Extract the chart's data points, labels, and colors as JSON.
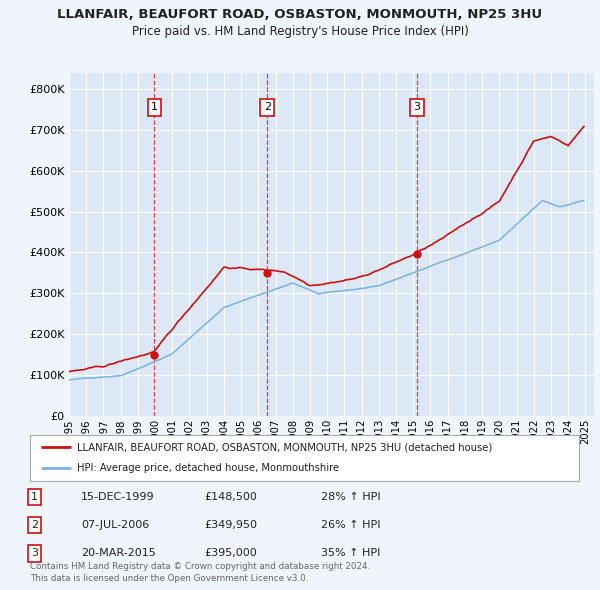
{
  "title": "LLANFAIR, BEAUFORT ROAD, OSBASTON, MONMOUTH, NP25 3HU",
  "subtitle": "Price paid vs. HM Land Registry's House Price Index (HPI)",
  "background_color": "#f0f4fb",
  "plot_bg_color": "#dce8f5",
  "grid_color": "#ffffff",
  "ylim": [
    0,
    840000
  ],
  "yticks": [
    0,
    100000,
    200000,
    300000,
    400000,
    500000,
    600000,
    700000,
    800000
  ],
  "hpi_color": "#7ab3e0",
  "property_color": "#cc1111",
  "sale_marker_color": "#cc1111",
  "sale_points": [
    {
      "date_num": 1999.96,
      "price": 148500,
      "label": "1"
    },
    {
      "date_num": 2006.52,
      "price": 349950,
      "label": "2"
    },
    {
      "date_num": 2015.22,
      "price": 395000,
      "label": "3"
    }
  ],
  "vline_color": "#dd2222",
  "legend_items": [
    "LLANFAIR, BEAUFORT ROAD, OSBASTON, MONMOUTH, NP25 3HU (detached house)",
    "HPI: Average price, detached house, Monmouthshire"
  ],
  "table_data": [
    [
      "1",
      "15-DEC-1999",
      "£148,500",
      "28% ↑ HPI"
    ],
    [
      "2",
      "07-JUL-2006",
      "£349,950",
      "26% ↑ HPI"
    ],
    [
      "3",
      "20-MAR-2015",
      "£395,000",
      "35% ↑ HPI"
    ]
  ],
  "footer": "Contains HM Land Registry data © Crown copyright and database right 2024.\nThis data is licensed under the Open Government Licence v3.0."
}
